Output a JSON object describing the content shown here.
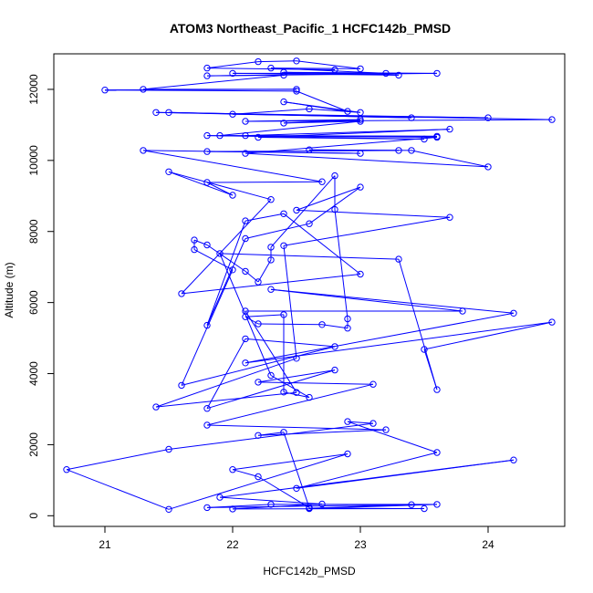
{
  "chart_data": {
    "type": "line",
    "title": "ATOM3 Northeast_Pacific_1 HCFC142b_PMSD",
    "xlabel": "HCFC142b_PMSD",
    "ylabel": "Altitude (m)",
    "xlim": [
      20.6,
      24.6
    ],
    "ylim": [
      -300,
      13000
    ],
    "xticks": [
      21,
      22,
      23,
      24
    ],
    "yticks": [
      0,
      2000,
      4000,
      6000,
      8000,
      10000,
      12000
    ],
    "series": [
      {
        "color": "#0000ff",
        "marker": "open-circle",
        "points": [
          [
            22.6,
            200
          ],
          [
            23.6,
            320
          ],
          [
            22.3,
            320
          ],
          [
            21.8,
            230
          ],
          [
            23.4,
            310
          ],
          [
            22.6,
            210
          ],
          [
            23.5,
            200
          ],
          [
            22.0,
            190
          ],
          [
            22.7,
            330
          ],
          [
            21.9,
            520
          ],
          [
            24.2,
            1570
          ],
          [
            22.5,
            770
          ],
          [
            23.6,
            1780
          ],
          [
            22.9,
            2650
          ],
          [
            23.1,
            2600
          ],
          [
            21.5,
            1870
          ],
          [
            20.7,
            1300
          ],
          [
            21.5,
            180
          ],
          [
            22.9,
            1740
          ],
          [
            22.0,
            1300
          ],
          [
            22.2,
            1100
          ],
          [
            22.6,
            230
          ],
          [
            22.4,
            2350
          ],
          [
            22.2,
            2260
          ],
          [
            23.2,
            2420
          ],
          [
            21.8,
            2550
          ],
          [
            23.1,
            3700
          ],
          [
            22.2,
            3760
          ],
          [
            22.8,
            4100
          ],
          [
            21.8,
            3020
          ],
          [
            22.1,
            4980
          ],
          [
            22.8,
            4760
          ],
          [
            21.6,
            3670
          ],
          [
            22.0,
            6920
          ],
          [
            21.7,
            7490
          ],
          [
            21.7,
            7760
          ],
          [
            21.8,
            7620
          ],
          [
            22.1,
            6880
          ],
          [
            22.2,
            6580
          ],
          [
            22.3,
            7200
          ],
          [
            22.3,
            7560
          ],
          [
            22.8,
            9570
          ],
          [
            22.8,
            8620
          ],
          [
            22.9,
            5540
          ],
          [
            22.9,
            5280
          ],
          [
            22.7,
            5380
          ],
          [
            22.2,
            5400
          ],
          [
            22.1,
            5600
          ],
          [
            22.4,
            5660
          ],
          [
            22.4,
            3480
          ],
          [
            22.6,
            3330
          ],
          [
            22.3,
            3950
          ],
          [
            21.9,
            7380
          ],
          [
            23.3,
            7220
          ],
          [
            23.6,
            3550
          ],
          [
            23.5,
            4680
          ],
          [
            24.5,
            5450
          ],
          [
            22.1,
            4300
          ],
          [
            24.2,
            5700
          ],
          [
            22.3,
            6370
          ],
          [
            23.8,
            5760
          ],
          [
            22.1,
            5760
          ],
          [
            22.5,
            3470
          ],
          [
            21.4,
            3060
          ],
          [
            22.5,
            4430
          ],
          [
            22.4,
            7600
          ],
          [
            23.7,
            8400
          ],
          [
            22.5,
            8600
          ],
          [
            23.0,
            9250
          ],
          [
            22.6,
            8220
          ],
          [
            22.1,
            7800
          ],
          [
            21.8,
            5360
          ],
          [
            22.1,
            8300
          ],
          [
            22.4,
            8500
          ],
          [
            23.0,
            6800
          ],
          [
            21.6,
            6250
          ],
          [
            22.3,
            8900
          ],
          [
            21.5,
            9680
          ],
          [
            22.0,
            9020
          ],
          [
            21.8,
            9380
          ],
          [
            22.7,
            9400
          ],
          [
            21.3,
            10280
          ],
          [
            23.0,
            10200
          ],
          [
            21.8,
            10250
          ],
          [
            23.3,
            10280
          ],
          [
            22.6,
            10300
          ],
          [
            23.4,
            10280
          ],
          [
            24.0,
            9820
          ],
          [
            22.1,
            10200
          ],
          [
            23.6,
            10650
          ],
          [
            21.8,
            10700
          ],
          [
            23.5,
            10600
          ],
          [
            22.2,
            10650
          ],
          [
            23.7,
            10880
          ],
          [
            22.1,
            10700
          ],
          [
            23.6,
            10680
          ],
          [
            21.9,
            10700
          ],
          [
            23.0,
            11100
          ],
          [
            22.4,
            11050
          ],
          [
            23.0,
            11150
          ],
          [
            22.1,
            11100
          ],
          [
            24.5,
            11150
          ],
          [
            21.5,
            11350
          ],
          [
            23.4,
            11200
          ],
          [
            21.4,
            11350
          ],
          [
            24.0,
            11200
          ],
          [
            22.0,
            11300
          ],
          [
            22.6,
            11450
          ],
          [
            23.0,
            11350
          ],
          [
            22.4,
            11650
          ],
          [
            22.9,
            11380
          ],
          [
            22.5,
            11950
          ],
          [
            21.0,
            11980
          ],
          [
            22.5,
            12000
          ],
          [
            21.3,
            12000
          ],
          [
            22.4,
            12400
          ],
          [
            21.8,
            12380
          ],
          [
            23.6,
            12450
          ],
          [
            22.4,
            12480
          ],
          [
            23.3,
            12400
          ],
          [
            22.0,
            12450
          ],
          [
            23.2,
            12450
          ],
          [
            22.3,
            12600
          ],
          [
            23.0,
            12580
          ],
          [
            22.5,
            12800
          ],
          [
            22.2,
            12780
          ],
          [
            21.8,
            12600
          ],
          [
            22.8,
            12550
          ]
        ]
      }
    ]
  }
}
